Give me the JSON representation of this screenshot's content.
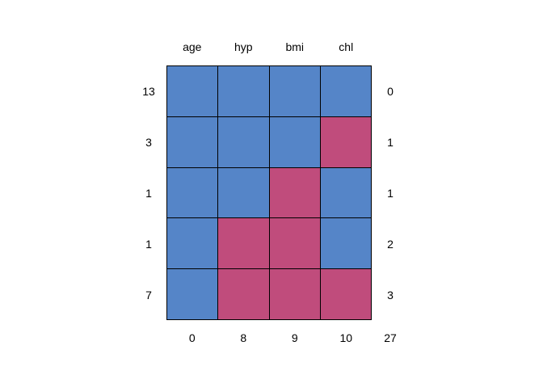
{
  "chart_data": {
    "type": "heatmap",
    "title": "",
    "columns": [
      "age",
      "hyp",
      "bmi",
      "chl"
    ],
    "pattern": [
      [
        1,
        1,
        1,
        1
      ],
      [
        1,
        1,
        1,
        0
      ],
      [
        1,
        1,
        0,
        1
      ],
      [
        1,
        0,
        0,
        1
      ],
      [
        1,
        0,
        0,
        0
      ]
    ],
    "row_frequencies": [
      13,
      3,
      1,
      1,
      7
    ],
    "row_missing_counts": [
      0,
      1,
      1,
      2,
      3
    ],
    "column_missing_counts": [
      0,
      8,
      9,
      10
    ],
    "total_missing": 27,
    "colors": {
      "observed": "#5585C8",
      "missing": "#C04C7C",
      "grid_line": "#000000",
      "background": "#FFFFFF",
      "text": "#000000"
    },
    "layout": {
      "grid_columns": 4,
      "grid_rows": 5,
      "legend_position": "none",
      "grid_on": true
    }
  }
}
